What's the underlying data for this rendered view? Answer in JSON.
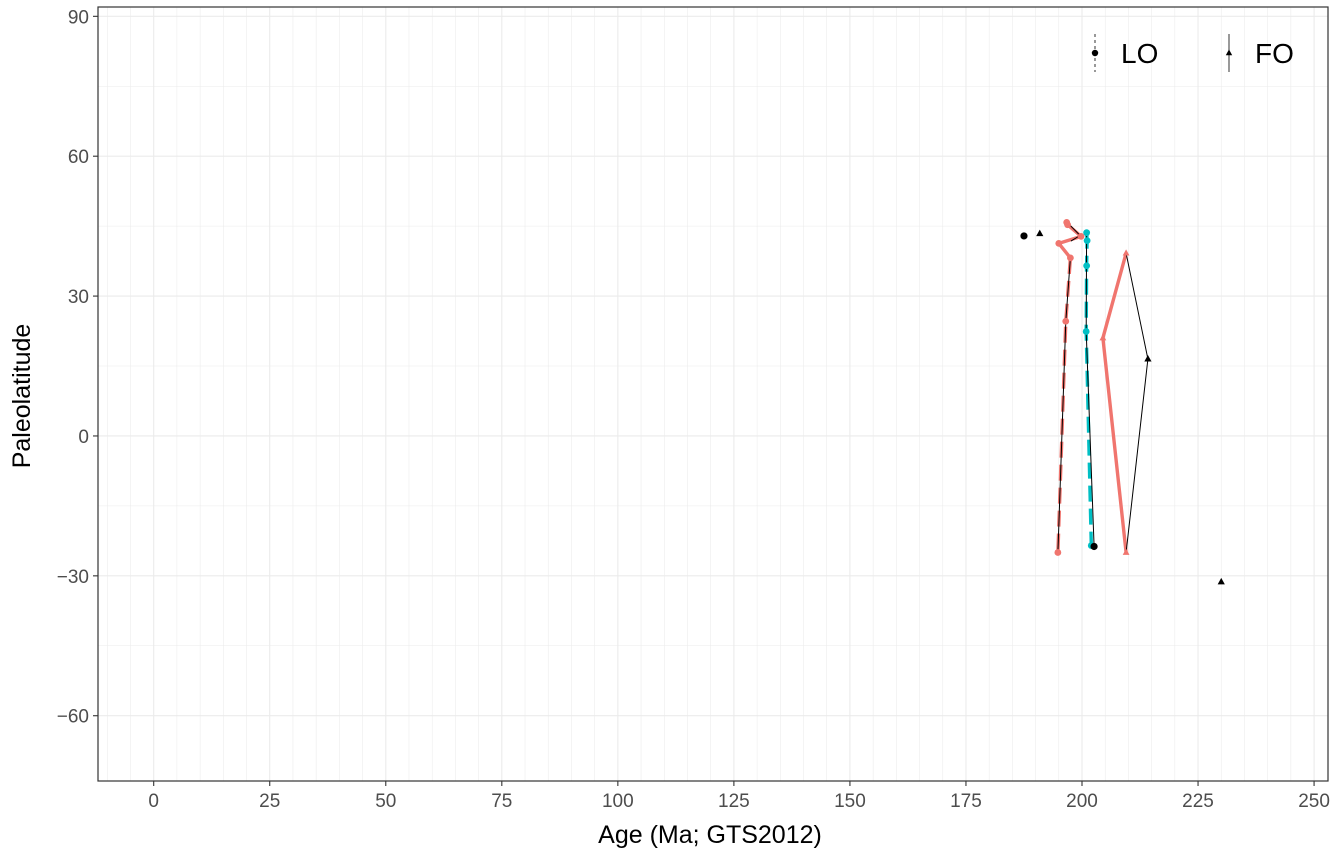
{
  "chart_data": {
    "type": "scatter",
    "title": "",
    "xlabel": "Age (Ma; GTS2012)",
    "ylabel": "Paleolatitude",
    "xlim": [
      -12,
      253
    ],
    "ylim": [
      -74,
      92
    ],
    "x_ticks": [
      0,
      25,
      50,
      75,
      100,
      125,
      150,
      175,
      200,
      225,
      250
    ],
    "y_ticks": [
      -60,
      -30,
      0,
      30,
      60,
      90
    ],
    "grid": true,
    "legend": {
      "placement": "top-right",
      "entries": [
        {
          "label": "LO",
          "shape": "circle"
        },
        {
          "label": "FO",
          "shape": "triangle"
        }
      ]
    },
    "colors": {
      "red_series": "#F0756E",
      "teal_series": "#00BFC4",
      "black": "#000000",
      "grid": "#EBEBEB",
      "panel_border": "#333333"
    },
    "series": [
      {
        "style": "red-solid-circle",
        "color": "#F0756E",
        "dash": "solid",
        "points": [
          {
            "x": 196.7,
            "y": 45.8,
            "shape": "circle"
          },
          {
            "x": 196.9,
            "y": 45.3,
            "shape": "circle"
          },
          {
            "x": 199.8,
            "y": 42.8,
            "shape": "circle"
          },
          {
            "x": 195.0,
            "y": 41.3,
            "shape": "circle"
          },
          {
            "x": 197.5,
            "y": 38.2,
            "shape": "circle"
          }
        ],
        "path": [
          [
            196.7,
            45.8
          ],
          [
            196.9,
            45.3
          ],
          [
            199.8,
            42.8
          ],
          [
            195.0,
            41.3
          ],
          [
            197.5,
            38.2
          ]
        ]
      },
      {
        "style": "red-dashed-circle",
        "color": "#F0756E",
        "dash": "dashed",
        "points": [
          {
            "x": 196.5,
            "y": 24.6,
            "shape": "circle"
          },
          {
            "x": 194.8,
            "y": -25.0,
            "shape": "circle"
          }
        ],
        "path": [
          [
            197.5,
            38.2
          ],
          [
            196.5,
            24.6
          ],
          [
            194.8,
            -25.0
          ]
        ]
      },
      {
        "style": "red-solid-triangle",
        "color": "#F0756E",
        "dash": "solid",
        "points": [
          {
            "x": 209.5,
            "y": 39.2,
            "shape": "triangle"
          },
          {
            "x": 204.5,
            "y": 21.0,
            "shape": "triangle"
          },
          {
            "x": 209.5,
            "y": -25.0,
            "shape": "triangle"
          }
        ],
        "path": [
          [
            209.5,
            39.2
          ],
          [
            204.5,
            21.0
          ],
          [
            209.5,
            -25.0
          ]
        ]
      },
      {
        "style": "teal-dashed-circle",
        "color": "#00BFC4",
        "dash": "dashed",
        "points": [
          {
            "x": 201.0,
            "y": 43.6,
            "shape": "circle"
          },
          {
            "x": 201.1,
            "y": 41.9,
            "shape": "circle"
          },
          {
            "x": 201.0,
            "y": 36.5,
            "shape": "circle"
          },
          {
            "x": 200.9,
            "y": 22.4,
            "shape": "circle"
          },
          {
            "x": 202.0,
            "y": -23.5,
            "shape": "circle"
          }
        ],
        "path": [
          [
            201.0,
            43.6
          ],
          [
            201.1,
            41.9
          ],
          [
            201.0,
            36.5
          ],
          [
            200.9,
            22.4
          ],
          [
            202.0,
            -23.5
          ]
        ]
      },
      {
        "style": "black-thin",
        "color": "#000000",
        "dash": "solid",
        "points": [
          {
            "x": 187.5,
            "y": 42.9,
            "shape": "circle"
          },
          {
            "x": 190.9,
            "y": 43.4,
            "shape": "triangle"
          },
          {
            "x": 202.6,
            "y": -23.7,
            "shape": "circle"
          },
          {
            "x": 214.2,
            "y": 16.5,
            "shape": "triangle"
          },
          {
            "x": 230.0,
            "y": -31.3,
            "shape": "triangle"
          }
        ],
        "paths": [
          [
            [
              197.0,
              45.6
            ],
            [
              199.6,
              43.0
            ],
            [
              197.6,
              41.8
            ]
          ],
          [
            [
              197.5,
              38.2
            ],
            [
              196.5,
              24.6
            ],
            [
              194.8,
              -25.0
            ]
          ],
          [
            [
              201.0,
              43.6
            ],
            [
              200.9,
              22.4
            ],
            [
              202.6,
              -23.7
            ]
          ],
          [
            [
              209.5,
              39.2
            ],
            [
              214.2,
              16.5
            ],
            [
              209.5,
              -25.0
            ]
          ]
        ]
      }
    ]
  }
}
